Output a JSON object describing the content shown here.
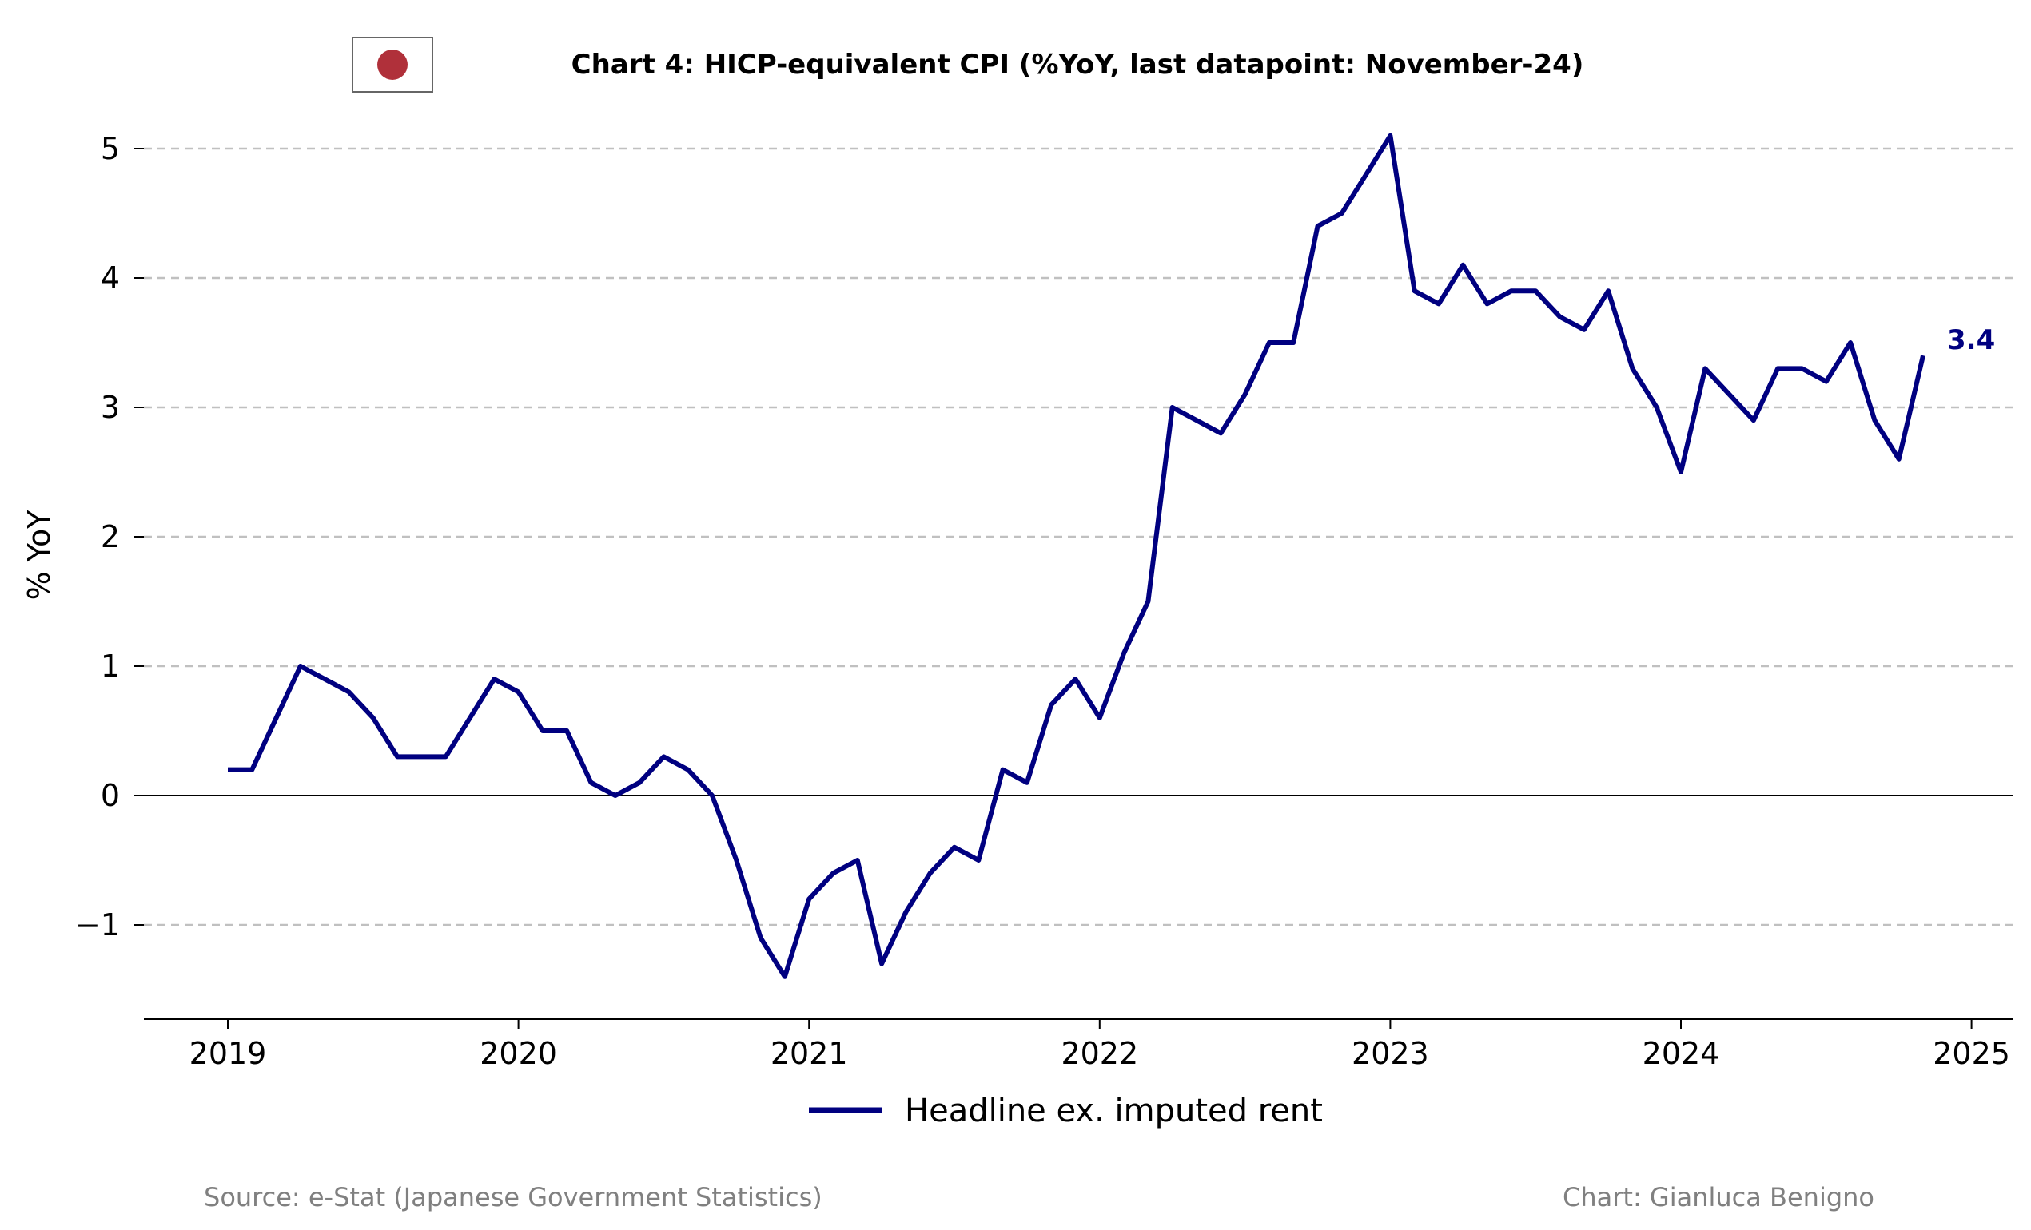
{
  "flag": {
    "name": "japan-flag",
    "disc_color": "#b0303a",
    "border_color": "#666666"
  },
  "title": "Chart 4: HICP-equivalent CPI (%YoY, last datapoint: November-24)",
  "footer": {
    "source": "Source: e-Stat (Japanese Government Statistics)",
    "credit": "Chart: Gianluca Benigno"
  },
  "chart_data": {
    "type": "line",
    "title": "Chart 4: HICP-equivalent CPI (%YoY, last datapoint: November-24)",
    "xlabel": "",
    "ylabel": "% YoY",
    "x_ticks": [
      "2019",
      "2020",
      "2021",
      "2022",
      "2023",
      "2024",
      "2025"
    ],
    "y_ticks": [
      "5",
      "4",
      "3",
      "2",
      "1",
      "0",
      "−1"
    ],
    "xlim": [
      "2018-09",
      "2025-02"
    ],
    "ylim": [
      -1.72,
      5.25
    ],
    "grid": "horizontal dashed",
    "zero_line": true,
    "legend_position": "bottom-center",
    "last_value_label": "3.4",
    "series": [
      {
        "name": "Headline ex. imputed rent",
        "color": "#000080",
        "x": [
          "2019-01",
          "2019-02",
          "2019-03",
          "2019-04",
          "2019-05",
          "2019-06",
          "2019-07",
          "2019-08",
          "2019-09",
          "2019-10",
          "2019-11",
          "2019-12",
          "2020-01",
          "2020-02",
          "2020-03",
          "2020-04",
          "2020-05",
          "2020-06",
          "2020-07",
          "2020-08",
          "2020-09",
          "2020-10",
          "2020-11",
          "2020-12",
          "2021-01",
          "2021-02",
          "2021-03",
          "2021-04",
          "2021-05",
          "2021-06",
          "2021-07",
          "2021-08",
          "2021-09",
          "2021-10",
          "2021-11",
          "2021-12",
          "2022-01",
          "2022-02",
          "2022-03",
          "2022-04",
          "2022-05",
          "2022-06",
          "2022-07",
          "2022-08",
          "2022-09",
          "2022-10",
          "2022-11",
          "2022-12",
          "2023-01",
          "2023-02",
          "2023-03",
          "2023-04",
          "2023-05",
          "2023-06",
          "2023-07",
          "2023-08",
          "2023-09",
          "2023-10",
          "2023-11",
          "2023-12",
          "2024-01",
          "2024-02",
          "2024-03",
          "2024-04",
          "2024-05",
          "2024-06",
          "2024-07",
          "2024-08",
          "2024-09",
          "2024-10",
          "2024-11"
        ],
        "values": [
          0.2,
          0.2,
          0.6,
          1.0,
          0.9,
          0.8,
          0.6,
          0.3,
          0.3,
          0.3,
          0.6,
          0.9,
          0.8,
          0.5,
          0.5,
          0.1,
          0.0,
          0.1,
          0.3,
          0.2,
          0.0,
          -0.5,
          -1.1,
          -1.4,
          -0.8,
          -0.6,
          -0.5,
          -1.3,
          -0.9,
          -0.6,
          -0.4,
          -0.5,
          0.2,
          0.1,
          0.7,
          0.9,
          0.6,
          1.1,
          1.5,
          3.0,
          2.9,
          2.8,
          3.1,
          3.5,
          3.5,
          4.4,
          4.5,
          4.8,
          5.1,
          3.9,
          3.8,
          4.1,
          3.8,
          3.9,
          3.9,
          3.7,
          3.6,
          3.9,
          3.3,
          3.0,
          2.5,
          3.3,
          3.1,
          2.9,
          3.3,
          3.3,
          3.2,
          3.5,
          2.9,
          2.6,
          3.4
        ]
      }
    ]
  }
}
